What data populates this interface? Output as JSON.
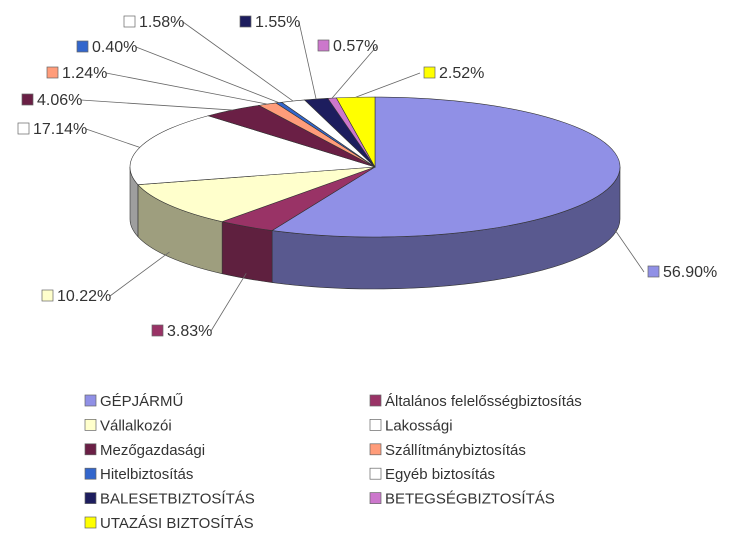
{
  "chart_data": {
    "type": "pie3d",
    "categories": [
      "GÉPJÁRMŰ",
      "Általános felelősségbiztosítás",
      "Vállalkozói",
      "Lakossági",
      "Mezőgazdasági",
      "Szállítmánybiztosítás",
      "Hitelbiztosítás",
      "Egyéb biztosítás",
      "BALESETBIZTOSÍTÁS",
      "BETEGSÉGBIZTOSÍTÁS",
      "UTAZÁSI BIZTOSÍTÁS"
    ],
    "values": [
      56.9,
      3.83,
      10.22,
      17.14,
      4.06,
      1.24,
      0.4,
      1.58,
      1.55,
      0.57,
      2.52
    ],
    "value_labels": [
      "56.90%",
      "3.83%",
      "10.22%",
      "17.14%",
      "4.06%",
      "1.24%",
      "0.40%",
      "1.58%",
      "1.55%",
      "0.57%",
      "2.52%"
    ],
    "colors": [
      "#9090e6",
      "#993366",
      "#ffffcc",
      "#ffffff",
      "#6a1f45",
      "#ff9c7a",
      "#3366cc",
      "#ffffff",
      "#1d1d5e",
      "#cc77cc",
      "#ffff00"
    ],
    "legend": "bottom"
  }
}
